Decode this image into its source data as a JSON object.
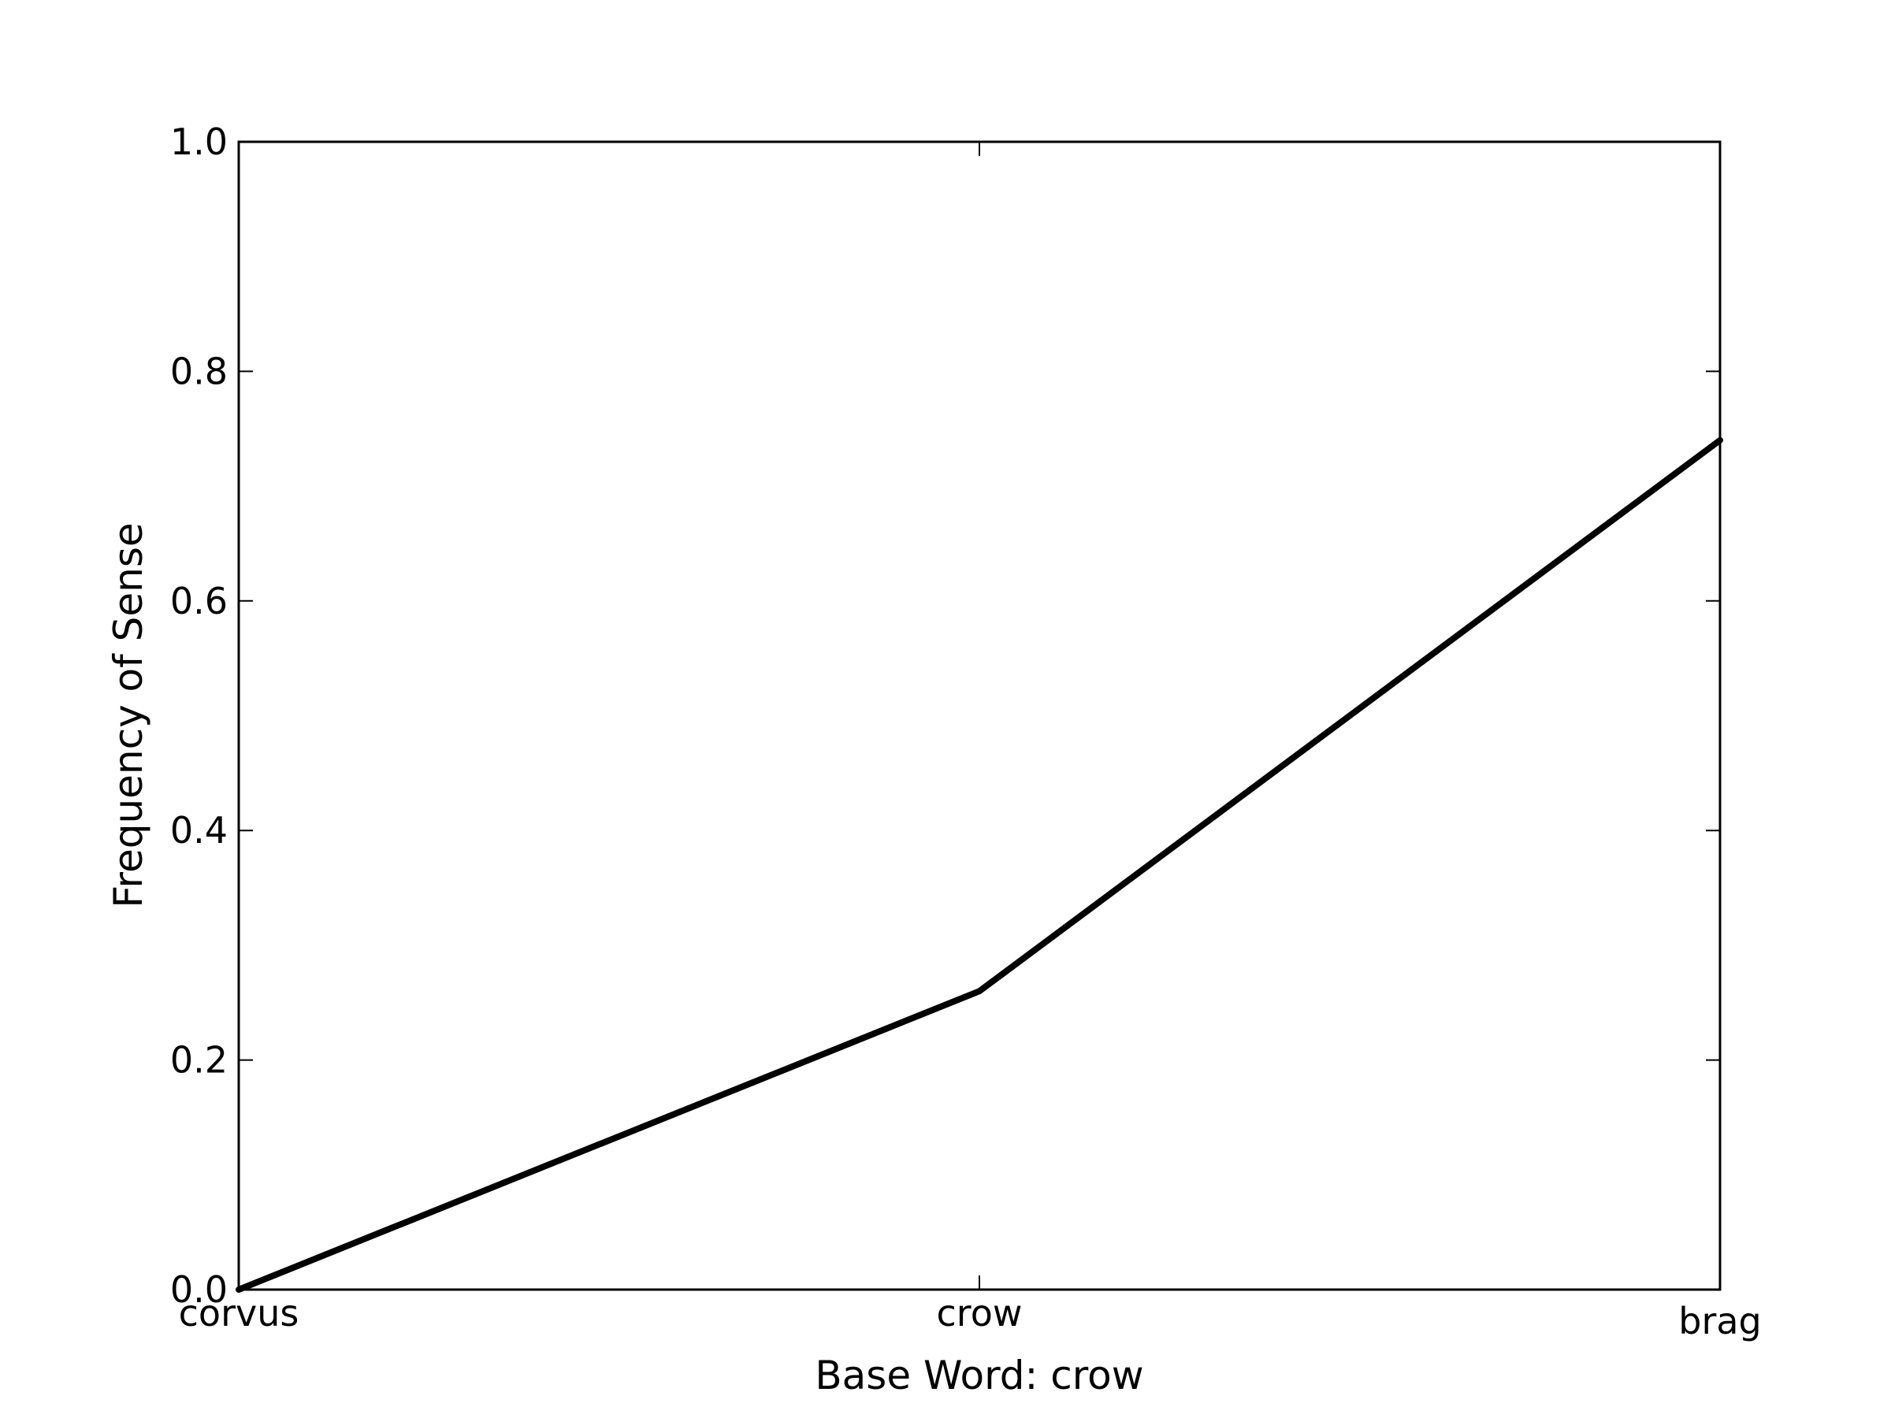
{
  "chart_data": {
    "type": "line",
    "title": "",
    "xlabel": "Base Word: crow",
    "ylabel": "Frequency of Sense",
    "categories": [
      "corvus",
      "crow",
      "brag"
    ],
    "series": [
      {
        "values": [
          0.0,
          0.26,
          0.74
        ],
        "color": "#000000"
      }
    ],
    "ylim": [
      0.0,
      1.0
    ],
    "yticks": [
      "0.0",
      "0.2",
      "0.4",
      "0.6",
      "0.8",
      "1.0"
    ],
    "grid": false,
    "legend": "none"
  }
}
